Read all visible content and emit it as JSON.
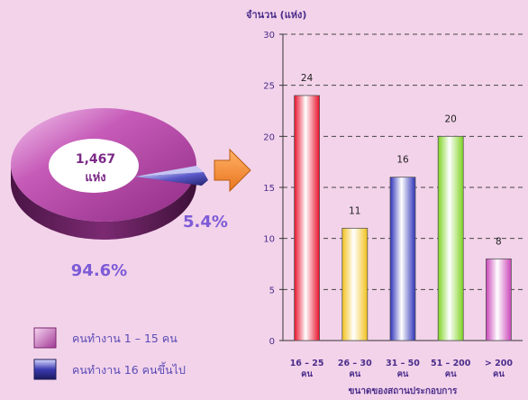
{
  "chart_data": [
    {
      "type": "pie",
      "center_label": [
        "1,467",
        "แห่ง"
      ],
      "slices": [
        {
          "label": "คนทำงาน 1 – 15 คน",
          "percent": 94.6,
          "percent_label": "94.6%",
          "color": "#b0479f"
        },
        {
          "label": "คนทำงาน 16 คนขึ้นไป",
          "percent": 5.4,
          "percent_label": "5.4%",
          "color": "#3f3ea6"
        }
      ]
    },
    {
      "type": "bar",
      "ylabel": "จำนวน (แห่ง)",
      "xlabel": "ขนาดของสถานประกอบการ",
      "ylim": [
        0,
        30
      ],
      "yticks": [
        0,
        5,
        10,
        15,
        20,
        25,
        30
      ],
      "grid": "dashed-horizontal",
      "categories": [
        [
          "16 – 25",
          "คน"
        ],
        [
          "26 – 30",
          "คน"
        ],
        [
          "31 – 50",
          "คน"
        ],
        [
          "51 – 200",
          "คน"
        ],
        [
          "> 200",
          "คน"
        ]
      ],
      "values": [
        24,
        11,
        16,
        20,
        8
      ],
      "value_labels": [
        "24",
        "11",
        "16",
        "20",
        "8"
      ],
      "colors": [
        "#e8102a",
        "#f2c21c",
        "#2e31b8",
        "#7fd322",
        "#ca45b8"
      ]
    }
  ]
}
